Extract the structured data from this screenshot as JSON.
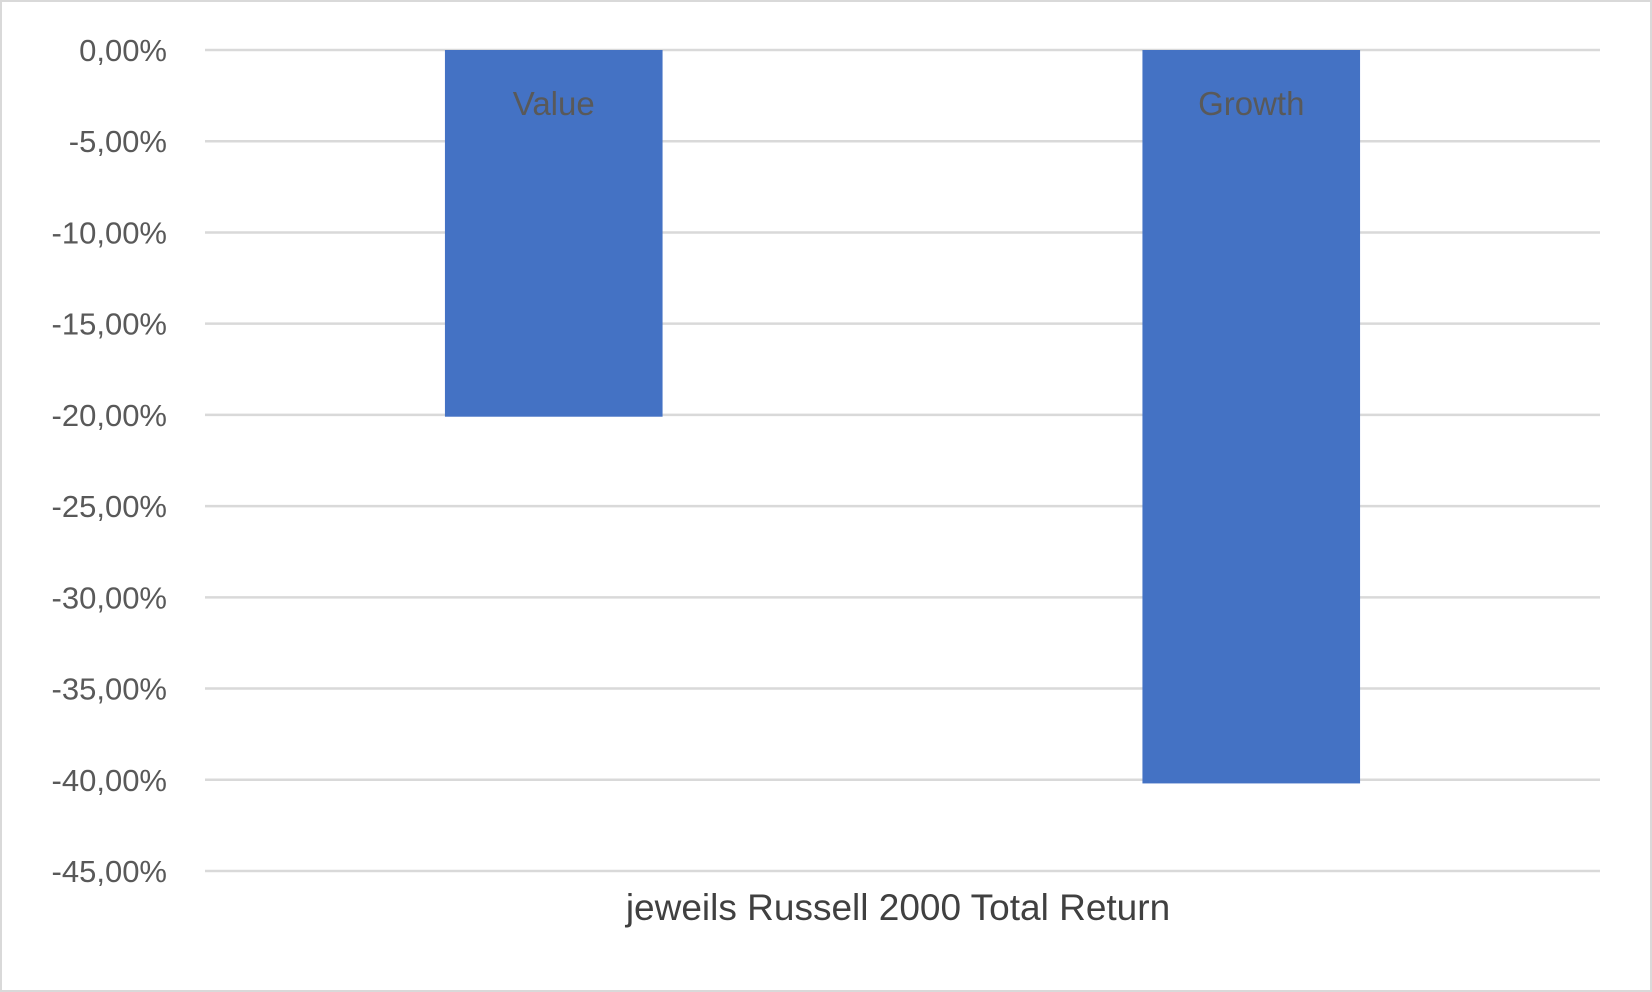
{
  "chart_data": {
    "type": "bar",
    "categories": [
      "Value",
      "Growth"
    ],
    "values": [
      -20.1,
      -40.2
    ],
    "bar_labels": [
      "Value",
      "Growth"
    ],
    "xlabel": "jeweils Russell 2000 Total Return",
    "ylim": [
      -45,
      0
    ],
    "y_ticks": [
      0,
      -5,
      -10,
      -15,
      -20,
      -25,
      -30,
      -35,
      -40,
      -45
    ],
    "y_tick_labels": [
      "0,00%",
      "-5,00%",
      "-10,00%",
      "-15,00%",
      "-20,00%",
      "-25,00%",
      "-30,00%",
      "-35,00%",
      "-40,00%",
      "-45,00%"
    ],
    "grid": true,
    "legend": "none",
    "colors": {
      "bar": "#4472c4",
      "grid": "#d9d9d9",
      "text": "#595959"
    }
  }
}
